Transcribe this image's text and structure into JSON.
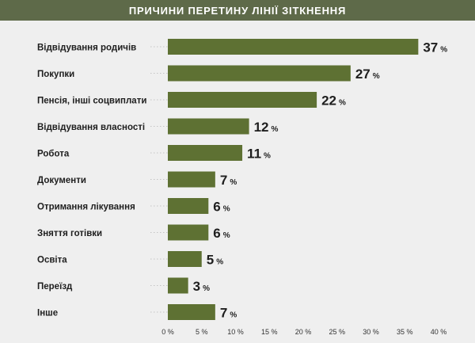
{
  "header": {
    "title": "ПРИЧИНИ ПЕРЕТИНУ ЛІНІЇ ЗІТКНЕННЯ"
  },
  "colors": {
    "bar": "#5e7133",
    "header_bg": "#5e6a49",
    "text": "#1e1e1e",
    "grid": "#c4c4c4"
  },
  "chart_data": {
    "type": "bar",
    "orientation": "horizontal",
    "title": "ПРИЧИНИ ПЕРЕТИНУ ЛІНІЇ ЗІТКНЕННЯ",
    "categories": [
      "Відвідування родичів",
      "Покупки",
      "Пенсія, інші соцвиплати",
      "Відвідування власності",
      "Робота",
      "Документи",
      "Отримання лікування",
      "Зняття готівки",
      "Освіта",
      "Переїзд",
      "Інше"
    ],
    "values": [
      37,
      27,
      22,
      12,
      11,
      7,
      6,
      6,
      5,
      3,
      7
    ],
    "value_unit": "%",
    "xlim": [
      0,
      40
    ],
    "xticks": [
      "0 %",
      "5 %",
      "10 %",
      "15 %",
      "20 %",
      "25 %",
      "30 %",
      "35 %",
      "40 %"
    ],
    "grid": "dotted row guides",
    "legend": "none"
  }
}
